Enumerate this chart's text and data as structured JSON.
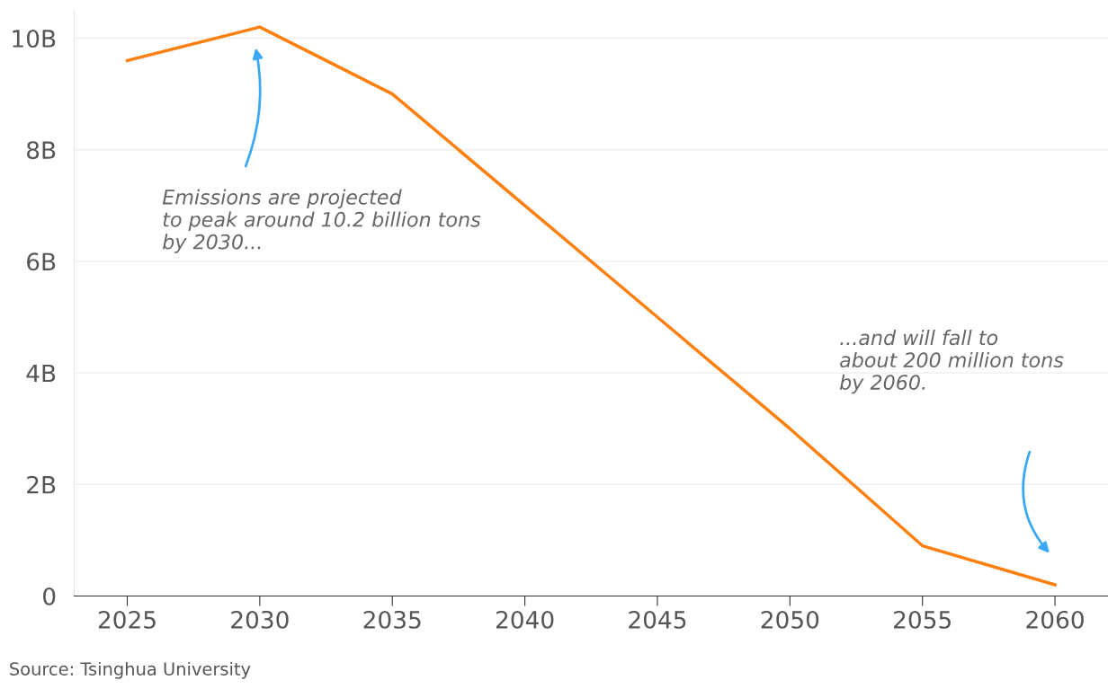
{
  "chart_data": {
    "type": "line",
    "x": [
      2025,
      2030,
      2035,
      2040,
      2045,
      2050,
      2055,
      2060
    ],
    "series": [
      {
        "color": "#ff7f0e",
        "values": [
          9.6,
          10.2,
          9.0,
          7.0,
          5.0,
          3.0,
          0.9,
          0.2
        ]
      }
    ],
    "xlim": [
      2023,
      2062
    ],
    "xticks": [
      2025,
      2030,
      2035,
      2040,
      2045,
      2050,
      2055,
      2060
    ],
    "ylim": [
      0,
      10.5
    ],
    "yticks": [
      {
        "value": 0,
        "label": "0"
      },
      {
        "value": 2,
        "label": "2B"
      },
      {
        "value": 4,
        "label": "4B"
      },
      {
        "value": 6,
        "label": "6B"
      },
      {
        "value": 8,
        "label": "8B"
      },
      {
        "value": 10,
        "label": "10B"
      }
    ],
    "grid": "y",
    "annotations": [
      "Emissions are projected\nto peak around 10.2 billion tons\nby 2030...",
      "...and will fall to\nabout 200 million tons\nby 2060.",
      "Source: Tsinghua University"
    ]
  }
}
